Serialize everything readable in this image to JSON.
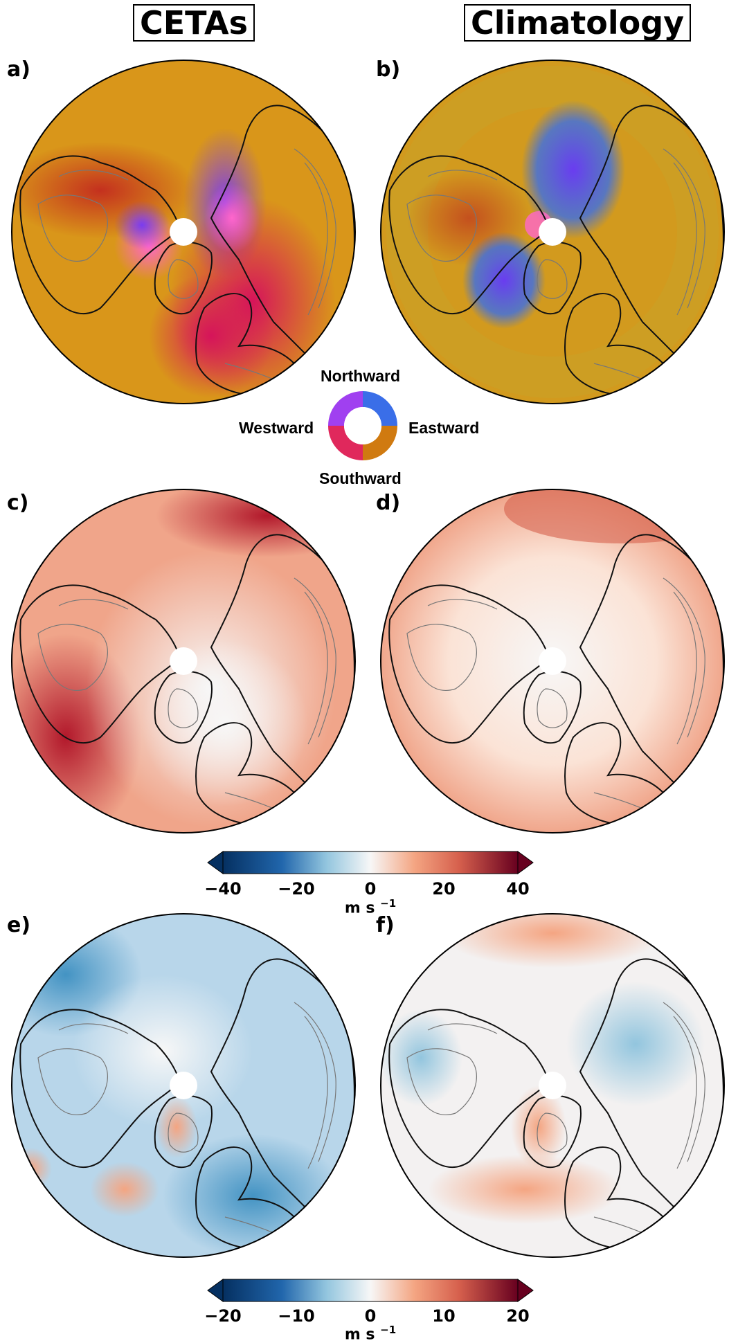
{
  "columns": {
    "left_title": "CETAs",
    "right_title": "Climatology"
  },
  "panels": [
    {
      "label": "a)"
    },
    {
      "label": "b)"
    },
    {
      "label": "c)"
    },
    {
      "label": "d)"
    },
    {
      "label": "e)"
    },
    {
      "label": "f)"
    }
  ],
  "direction_wheel": {
    "north": "Northward",
    "south": "Southward",
    "east": "Eastward",
    "west": "Westward",
    "colors": {
      "north": "#7a3cf0",
      "east": "#c9a227",
      "south": "#c8143c",
      "west": "#ff66cc",
      "northeast": "#3a6ee8",
      "southeast": "#d07a10"
    }
  },
  "colorbar_speed": {
    "ticks": [
      "−40",
      "−20",
      "0",
      "20",
      "40"
    ],
    "tick_values": [
      -40,
      -20,
      0,
      20,
      40
    ],
    "unit": "m s",
    "unit_exp": "−1",
    "colormap": "RdBu_r",
    "extend": "both"
  },
  "colorbar_diff": {
    "ticks": [
      "−20",
      "−10",
      "0",
      "10",
      "20"
    ],
    "tick_values": [
      -20,
      -10,
      0,
      10,
      20
    ],
    "unit": "m s",
    "unit_exp": "−1",
    "colormap": "RdBu_r",
    "extend": "both"
  },
  "colors": {
    "orange_base": "#d9961a",
    "blue_dark": "#08306b",
    "red_dark": "#67000d",
    "white": "#f7f7f7"
  }
}
